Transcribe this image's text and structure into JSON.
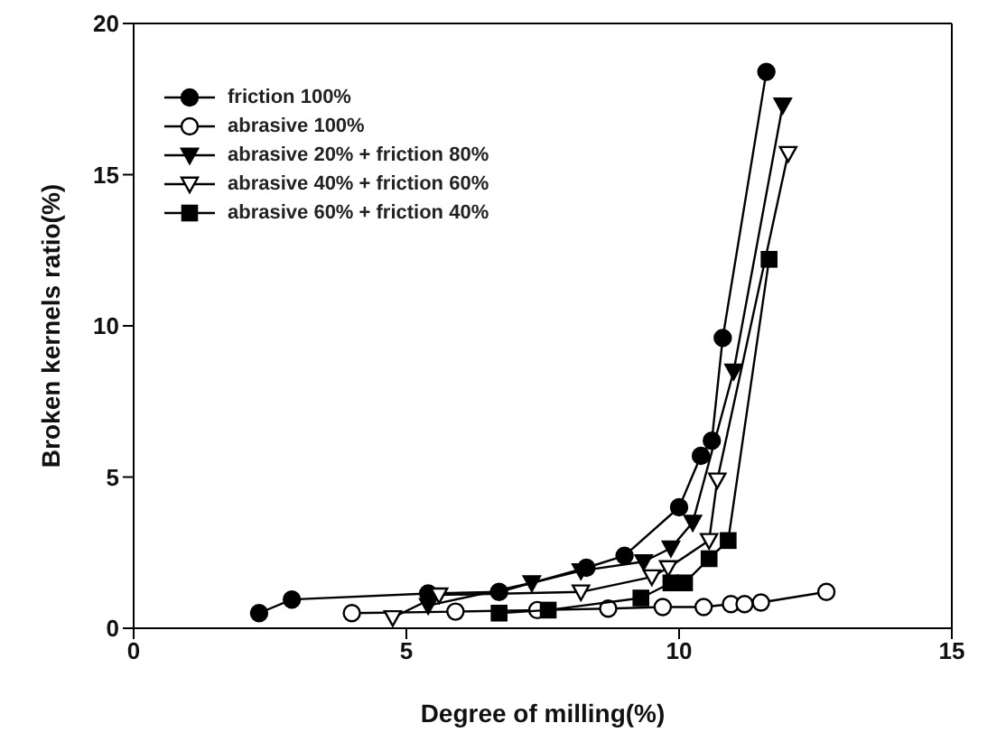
{
  "chart_data": {
    "type": "line",
    "xlabel": "Degree of milling(%)",
    "ylabel": "Broken kernels ratio(%)",
    "xlim": [
      0,
      15
    ],
    "xticks": [
      0,
      5,
      10,
      15
    ],
    "ylim": [
      0,
      20
    ],
    "yticks": [
      0,
      5,
      10,
      15,
      20
    ],
    "grid": false,
    "legend": "top left",
    "line_style": "solid",
    "series": [
      {
        "name": "friction 100%",
        "color": "#000000",
        "marker": "circle",
        "x": [
          2.3,
          2.9,
          5.4,
          6.7,
          8.3,
          9.0,
          10.0,
          10.4,
          10.6,
          10.8,
          11.6
        ],
        "values": [
          0.5,
          0.95,
          1.15,
          1.2,
          2.0,
          2.4,
          4.0,
          5.7,
          6.2,
          9.6,
          18.4
        ]
      },
      {
        "name": "abrasive 100%",
        "color": "#000000",
        "marker": "circle-open",
        "x": [
          4.0,
          5.9,
          7.4,
          8.7,
          9.7,
          10.45,
          10.95,
          11.2,
          11.5,
          12.7
        ],
        "values": [
          0.5,
          0.55,
          0.6,
          0.65,
          0.7,
          0.7,
          0.8,
          0.8,
          0.85,
          1.2
        ]
      },
      {
        "name": "abrasive 20% + friction 80%",
        "color": "#000000",
        "marker": "triangle",
        "x": [
          5.4,
          7.3,
          8.2,
          9.35,
          9.85,
          10.25,
          11.0,
          11.9
        ],
        "values": [
          0.75,
          1.5,
          1.9,
          2.2,
          2.65,
          3.5,
          8.5,
          17.3
        ]
      },
      {
        "name": "abrasive 40% + friction 60%",
        "color": "#000000",
        "marker": "triangle-open",
        "x": [
          4.75,
          5.6,
          8.2,
          9.5,
          9.8,
          10.55,
          10.7,
          12.0
        ],
        "values": [
          0.35,
          1.1,
          1.2,
          1.7,
          2.0,
          2.9,
          4.9,
          15.7
        ]
      },
      {
        "name": "abrasive 60% + friction 40%",
        "color": "#000000",
        "marker": "square",
        "x": [
          6.7,
          7.6,
          9.3,
          9.85,
          10.1,
          10.55,
          10.9,
          11.65
        ],
        "values": [
          0.5,
          0.6,
          1.0,
          1.5,
          1.5,
          2.3,
          2.9,
          12.2
        ]
      }
    ]
  }
}
